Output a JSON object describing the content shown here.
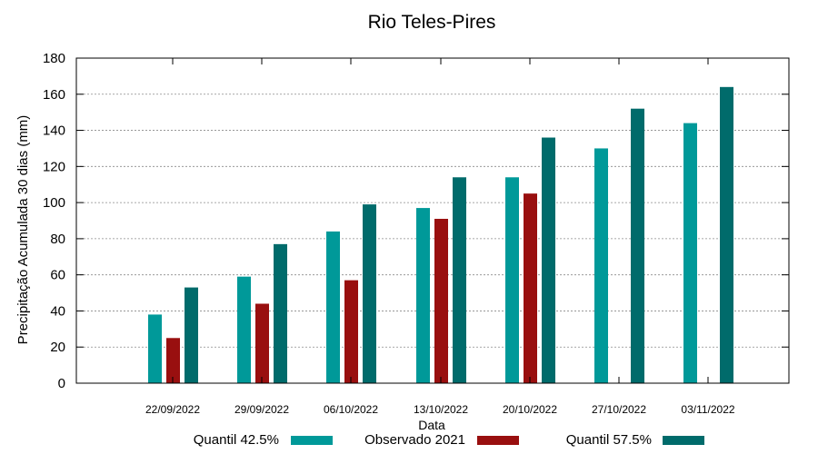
{
  "chart_data": {
    "type": "bar",
    "title": "Rio Teles-Pires",
    "xlabel": "Data",
    "ylabel": "Precipitação Acumulada 30 dias (mm)",
    "ylim": [
      0,
      180
    ],
    "yticks": [
      0,
      20,
      40,
      60,
      80,
      100,
      120,
      140,
      160,
      180
    ],
    "grid": true,
    "legend_position": "bottom",
    "categories": [
      "22/09/2022",
      "29/09/2022",
      "06/10/2022",
      "13/10/2022",
      "20/10/2022",
      "27/10/2022",
      "03/11/2022"
    ],
    "series": [
      {
        "name": "Quantil 42.5%",
        "color": "#009999",
        "values": [
          38,
          59,
          84,
          97,
          114,
          130,
          144
        ]
      },
      {
        "name": "Observado 2021",
        "color": "#990f0f",
        "values": [
          25,
          44,
          57,
          91,
          105,
          null,
          null
        ]
      },
      {
        "name": "Quantil 57.5%",
        "color": "#006b6b",
        "values": [
          53,
          77,
          99,
          114,
          136,
          152,
          164
        ]
      }
    ]
  }
}
